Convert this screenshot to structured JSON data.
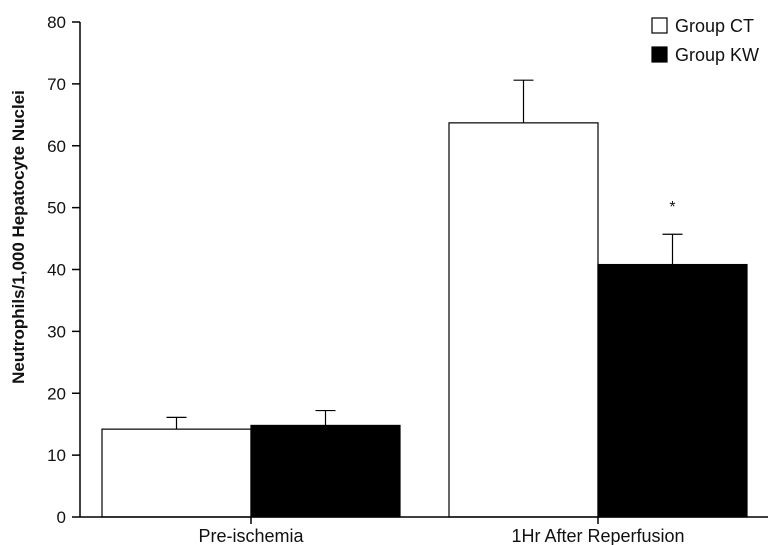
{
  "chart_data": {
    "type": "bar",
    "title": "",
    "xlabel": "",
    "ylabel": "Neutrophils/1,000 Hepatocyte Nuclei",
    "ylim": [
      0,
      80
    ],
    "yticks": [
      0,
      10,
      20,
      30,
      40,
      50,
      60,
      70,
      80
    ],
    "yticks_text": [
      "0",
      "10",
      "20",
      "30",
      "40",
      "50",
      "60",
      "70",
      "80"
    ],
    "categories": [
      "Pre-ischemia",
      "1Hr After Reperfusion"
    ],
    "series": [
      {
        "name": "Group CT",
        "values": [
          14.2,
          63.7
        ],
        "errors": [
          1.9,
          6.9
        ],
        "color": "#ffffff"
      },
      {
        "name": "Group KW",
        "values": [
          14.8,
          40.8
        ],
        "errors": [
          2.4,
          4.9
        ],
        "color": "#000000"
      }
    ],
    "annotations": [
      {
        "text": "*",
        "category": "1Hr After Reperfusion",
        "series": "Group KW"
      }
    ],
    "legend": "top-right",
    "grid": false
  }
}
